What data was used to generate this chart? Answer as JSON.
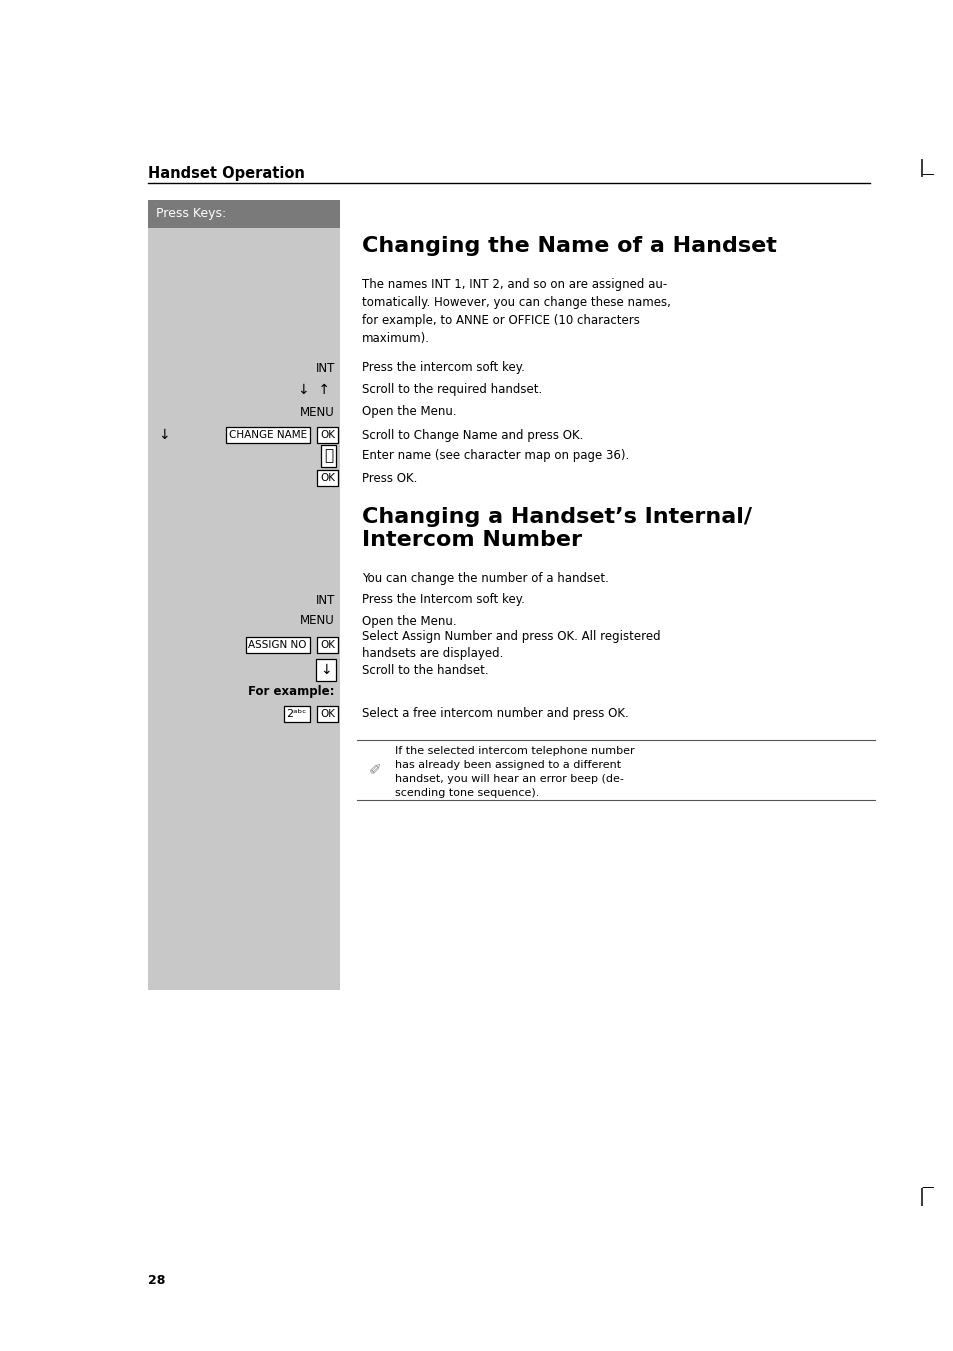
{
  "bg_color": "#ffffff",
  "panel_color": "#c8c8c8",
  "panel_header_color": "#7a7a7a",
  "header_text": "Press Keys:",
  "header_color": "#ffffff",
  "section1_title": "Changing the Name of a Handset",
  "section1_body": "The names INT 1, INT 2, and so on are assigned au-\ntomatically. However, you can change these names,\nfor example, to ANNE or OFFICE (10 characters\nmaximum).",
  "section2_title": "Changing a Handset’s Internal/\nIntercom Number",
  "section2_body": "You can change the number of a handset.",
  "note_text": "If the selected intercom telephone number\nhas already been assigned to a different\nhandset, you will hear an error beep (de-\nscending tone sequence).",
  "handset_op_label": "Handset Operation",
  "page_number": "28"
}
